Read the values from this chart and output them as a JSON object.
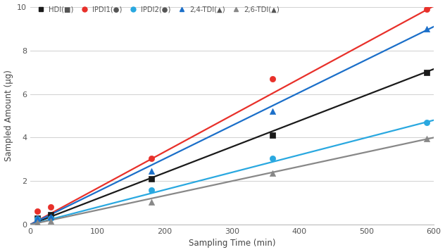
{
  "xlabel": "Sampling Time (min)",
  "ylabel": "Sampled Amount (µg)",
  "xlim": [
    0,
    600
  ],
  "ylim": [
    0,
    10
  ],
  "xticks": [
    0,
    100,
    200,
    300,
    400,
    500,
    600
  ],
  "yticks": [
    0,
    2,
    4,
    6,
    8,
    10
  ],
  "series": [
    {
      "label": "HDI(■)",
      "color": "#1a1a1a",
      "marker": "s",
      "x_data": [
        10,
        30,
        180,
        360,
        590
      ],
      "y_data": [
        0.3,
        0.45,
        2.1,
        4.1,
        7.0
      ],
      "fit_x": [
        0,
        600
      ],
      "fit_y": [
        0.0,
        7.15
      ]
    },
    {
      "label": "IPDI1(●)",
      "color": "#e8302a",
      "marker": "o",
      "x_data": [
        10,
        30,
        180,
        360,
        590
      ],
      "y_data": [
        0.6,
        0.8,
        3.05,
        6.7,
        9.9
      ],
      "fit_x": [
        0,
        600
      ],
      "fit_y": [
        0.0,
        10.05
      ]
    },
    {
      "label": "IPDI2(●)",
      "color": "#29a8e0",
      "marker": "o",
      "x_data": [
        10,
        30,
        180,
        360,
        590
      ],
      "y_data": [
        0.25,
        0.3,
        1.6,
        3.05,
        4.7
      ],
      "fit_x": [
        0,
        600
      ],
      "fit_y": [
        0.0,
        4.8
      ]
    },
    {
      "label": "2,4-TDI(▲)",
      "color": "#1b6fc9",
      "marker": "^",
      "x_data": [
        10,
        30,
        180,
        360,
        590
      ],
      "y_data": [
        0.3,
        0.35,
        2.45,
        5.2,
        9.0
      ],
      "fit_x": [
        0,
        600
      ],
      "fit_y": [
        0.0,
        9.1
      ]
    },
    {
      "label": "2,6-TDI(▲)",
      "color": "#888888",
      "marker": "^",
      "x_data": [
        10,
        30,
        180,
        360,
        590
      ],
      "y_data": [
        0.1,
        0.15,
        1.05,
        2.35,
        3.95
      ],
      "fit_x": [
        0,
        600
      ],
      "fit_y": [
        0.0,
        4.0
      ]
    }
  ],
  "background_color": "#ffffff",
  "grid_color": "#d0d0d0"
}
